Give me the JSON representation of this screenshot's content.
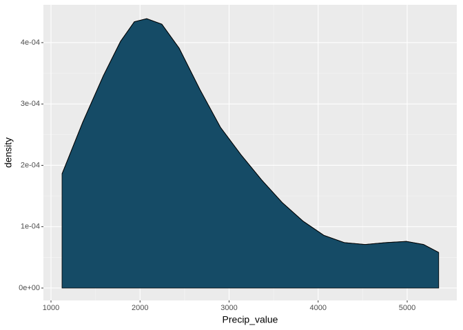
{
  "chart_data": {
    "type": "area",
    "x_label": "Precip_value",
    "y_label": "density",
    "x": [
      1124,
      1356,
      1588,
      1781,
      1936,
      2075,
      2245,
      2439,
      2671,
      2903,
      3135,
      3367,
      3599,
      3831,
      4063,
      4295,
      4527,
      4759,
      4991,
      5184,
      5354
    ],
    "values": [
      0.000186,
      0.00027,
      0.000346,
      0.000402,
      0.000434,
      0.000439,
      0.00043,
      0.000391,
      0.000324,
      0.000262,
      0.000217,
      0.000176,
      0.000139,
      0.000109,
      8.6e-05,
      7.4e-05,
      7.1e-05,
      7.4e-05,
      7.6e-05,
      7.1e-05,
      5.8e-05
    ],
    "color": "#154b66",
    "outline": "#000000",
    "xlim": [
      915,
      5557
    ],
    "ylim": [
      -2.02e-05,
      0.0004616
    ],
    "xticks": [
      1000,
      2000,
      3000,
      4000,
      5000
    ],
    "yticks": [
      {
        "value": 0,
        "label": "0e+00"
      },
      {
        "value": 0.0001,
        "label": "1e-04"
      },
      {
        "value": 0.0002,
        "label": "2e-04"
      },
      {
        "value": 0.0003,
        "label": "3e-04"
      },
      {
        "value": 0.0004,
        "label": "4e-04"
      }
    ],
    "grid": true
  }
}
